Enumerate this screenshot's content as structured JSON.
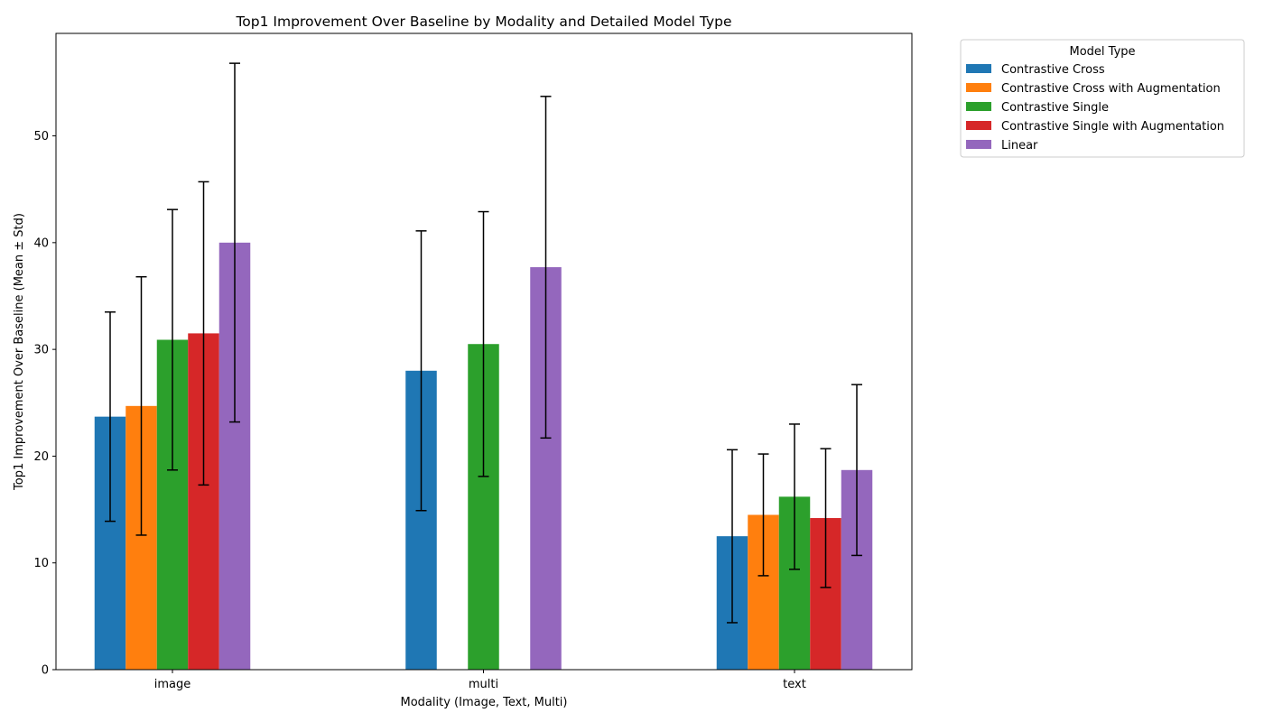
{
  "chart_data": {
    "type": "bar",
    "title": "Top1 Improvement Over Baseline by Modality and Detailed Model Type",
    "xlabel": "Modality (Image, Text, Multi)",
    "ylabel": "Top1 Improvement Over Baseline (Mean ± Std)",
    "categories": [
      "image",
      "multi",
      "text"
    ],
    "ylim": [
      0,
      59.6
    ],
    "yticks": [
      0,
      10,
      20,
      30,
      40,
      50
    ],
    "grid": false,
    "error_bars": true,
    "legend": {
      "title": "Model Type",
      "placement": "outside-top-right"
    },
    "series": [
      {
        "name": "Contrastive Cross",
        "color": "#1f77b4",
        "values": [
          23.7,
          28.0,
          12.5
        ],
        "std": [
          9.8,
          13.1,
          8.1
        ]
      },
      {
        "name": "Contrastive Cross with Augmentation",
        "color": "#ff7f0e",
        "values": [
          24.7,
          null,
          14.5
        ],
        "std": [
          12.1,
          null,
          5.7
        ]
      },
      {
        "name": "Contrastive Single",
        "color": "#2ca02c",
        "values": [
          30.9,
          30.5,
          16.2
        ],
        "std": [
          12.2,
          12.4,
          6.8
        ]
      },
      {
        "name": "Contrastive Single with Augmentation",
        "color": "#d62728",
        "values": [
          31.5,
          null,
          14.2
        ],
        "std": [
          14.2,
          null,
          6.5
        ]
      },
      {
        "name": "Linear",
        "color": "#9467bd",
        "values": [
          40.0,
          37.7,
          18.7
        ],
        "std": [
          16.8,
          16.0,
          8.0
        ]
      }
    ]
  }
}
